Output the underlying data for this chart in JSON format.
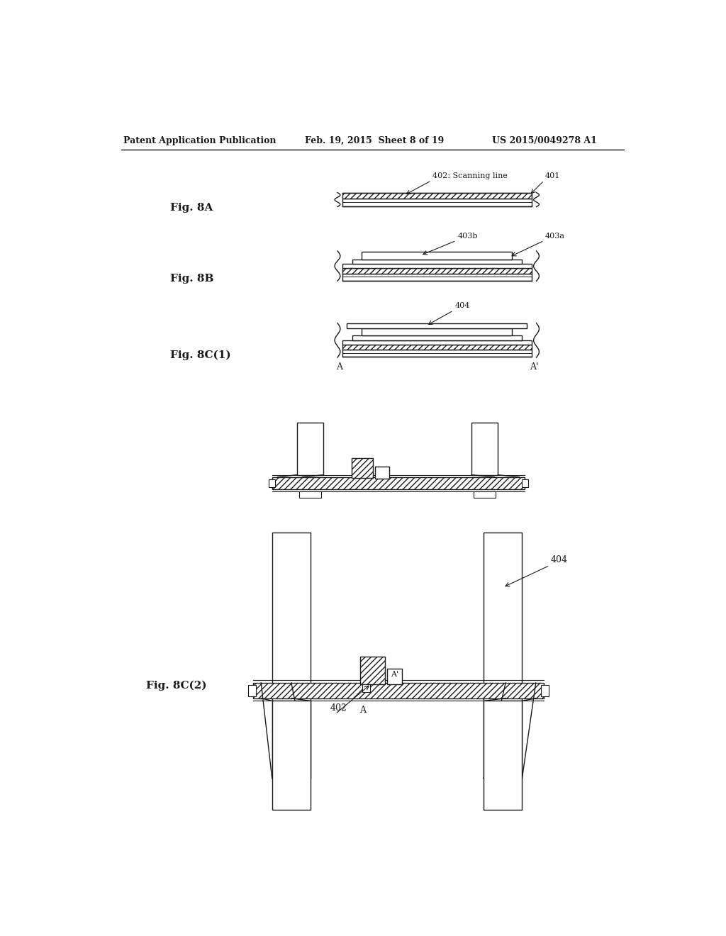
{
  "bg_color": "#ffffff",
  "header_left": "Patent Application Publication",
  "header_center": "Feb. 19, 2015  Sheet 8 of 19",
  "header_right": "US 2015/0049278 A1",
  "black": "#1a1a1a",
  "lw": 1.0
}
